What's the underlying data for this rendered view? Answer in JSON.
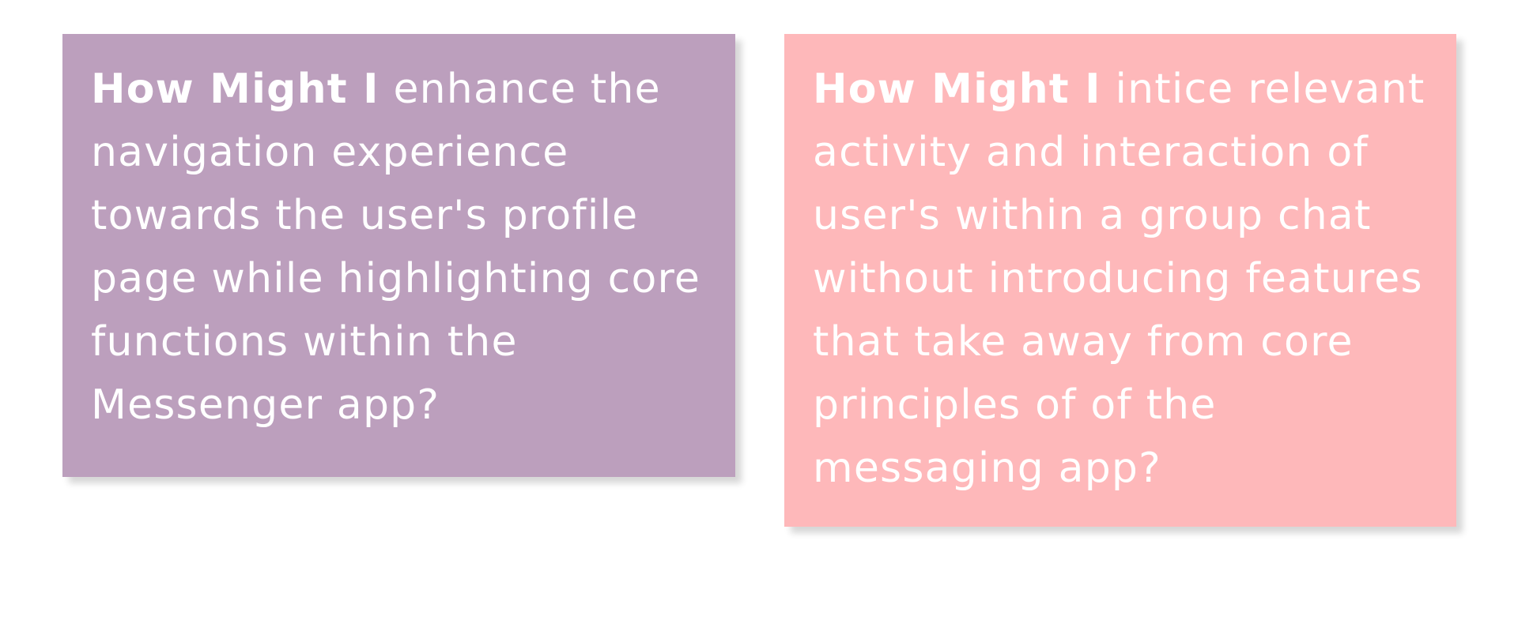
{
  "cards": [
    {
      "lead": "How Might I",
      "text": " enhance the navigation experience towards the user's profile page while highlighting core functions within the Messenger app?",
      "color": "#bc9fbd"
    },
    {
      "lead": "How Might I",
      "text": " intice relevant activity and interaction of user's within a group chat without introducing features that take away from core principles of of the messaging app?",
      "color": "#feb8ba"
    }
  ]
}
